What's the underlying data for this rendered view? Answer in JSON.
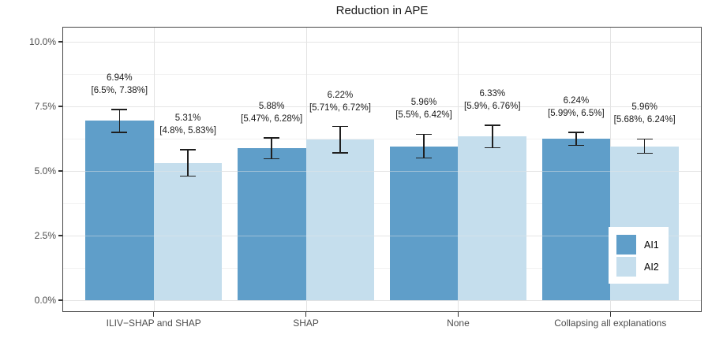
{
  "title": "Reduction in APE",
  "chart_data": {
    "type": "bar",
    "title": "Reduction in APE",
    "xlabel": "",
    "ylabel": "",
    "categories": [
      "ILIV−SHAP and SHAP",
      "SHAP",
      "None",
      "Collapsing all explanations"
    ],
    "series": [
      {
        "name": "AI1",
        "color": "#5F9EC9",
        "values": [
          6.94,
          5.88,
          5.96,
          6.24
        ],
        "ci": [
          [
            6.5,
            7.38
          ],
          [
            5.47,
            6.28
          ],
          [
            5.5,
            6.42
          ],
          [
            5.99,
            6.5
          ]
        ],
        "value_labels": [
          "6.94%",
          "5.88%",
          "5.96%",
          "6.24%"
        ],
        "ci_labels": [
          "[6.5%, 7.38%]",
          "[5.47%, 6.28%]",
          "[5.5%, 6.42%]",
          "[5.99%, 6.5%]"
        ]
      },
      {
        "name": "AI2",
        "color": "#C5DEED",
        "values": [
          5.31,
          6.22,
          6.33,
          5.96
        ],
        "ci": [
          [
            4.8,
            5.83
          ],
          [
            5.71,
            6.72
          ],
          [
            5.9,
            6.76
          ],
          [
            5.68,
            6.24
          ]
        ],
        "value_labels": [
          "5.31%",
          "6.22%",
          "6.33%",
          "5.96%"
        ],
        "ci_labels": [
          "[4.8%, 5.83%]",
          "[5.71%, 6.72%]",
          "[5.9%, 6.76%]",
          "[5.68%, 6.24%]"
        ]
      }
    ],
    "ylim": [
      0,
      10.5
    ],
    "y_ticks": [
      {
        "v": 0.0,
        "label": "0.0%"
      },
      {
        "v": 2.5,
        "label": "2.5%"
      },
      {
        "v": 5.0,
        "label": "5.0%"
      },
      {
        "v": 7.5,
        "label": "7.5%"
      },
      {
        "v": 10.0,
        "label": "10.0%"
      }
    ],
    "y_minor_ticks": [
      1.25,
      3.75,
      6.25,
      8.75
    ],
    "grid": true,
    "legend_position": "inside-right",
    "colors": {
      "grid_major": "#e3e3e3",
      "grid_minor": "#f2f2f2",
      "panel_border": "#474747",
      "error_bar": "#1f1f1f",
      "axis_text": "#4d4d4d",
      "annotation_text": "#1a1a1a"
    }
  }
}
